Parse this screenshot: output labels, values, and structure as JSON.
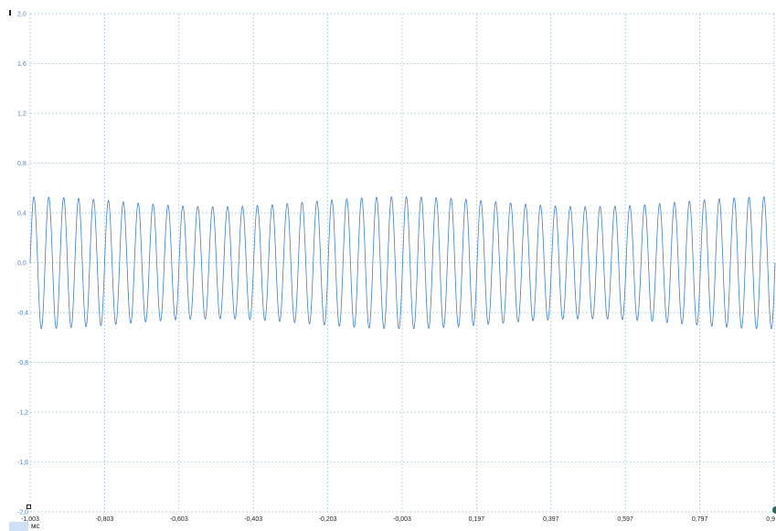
{
  "axis_unit": "мс",
  "unit_badge": "",
  "colors": {
    "trace": "#3f7fd0",
    "grid": "#a7cddd",
    "y_tick_text": "#4a86c8",
    "x_tick_text": "#222222"
  },
  "icons": {
    "channel_marker": "channel-marker-icon",
    "left_handle": "cursor-handle-icon",
    "right_handle": "trigger-handle-icon"
  },
  "chart_data": {
    "type": "line",
    "y_axis": {
      "min": -2.0,
      "max": 2.0,
      "ticks": [
        "2,0",
        "1,6",
        "1,2",
        "0,8",
        "0,4",
        "0,0",
        "-0,4",
        "-0,8",
        "-1,2",
        "-1,6",
        "-2,0"
      ]
    },
    "x_axis": {
      "min": -1.003,
      "max": 1.0,
      "unit": "мс",
      "ticks": [
        "-1,003",
        "-0,803",
        "-0,603",
        "-0,403",
        "-0,203",
        "-0,003",
        "0,197",
        "0,397",
        "0,597",
        "0,797",
        "0,9"
      ]
    },
    "grid": true,
    "series": [
      {
        "shape": "sine",
        "cycles": 50,
        "amplitude_peak": 0.53,
        "amplitude_trough": 0.45,
        "envelope_period_cycles": 25,
        "offset": 0.0
      }
    ]
  }
}
